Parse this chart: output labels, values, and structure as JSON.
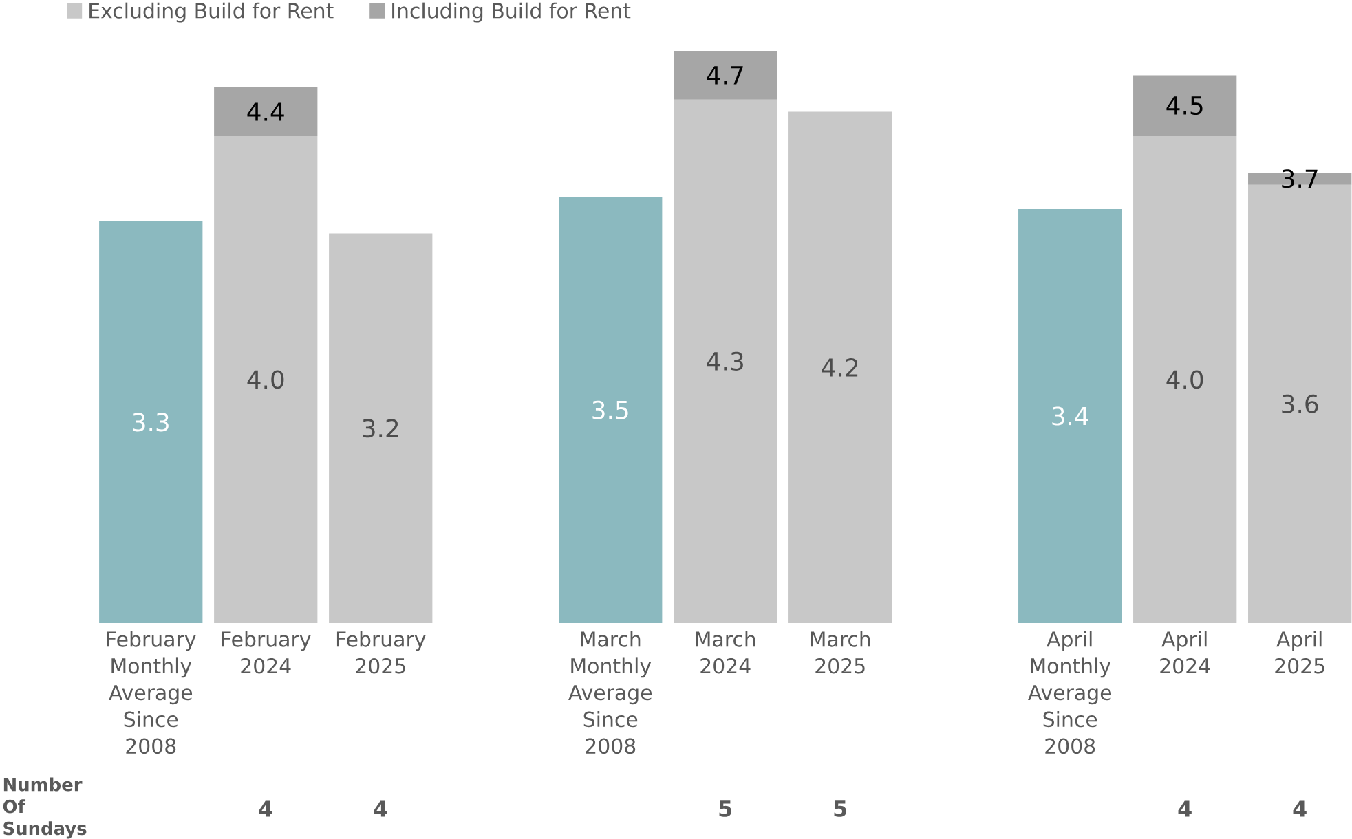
{
  "chart_data": {
    "type": "bar",
    "stacked": true,
    "legend": "top left",
    "categories": [
      "February Monthly Average Since 2008",
      "February 2024",
      "February 2025",
      null,
      "March Monthly Average Since 2008",
      "March 2024",
      "March 2025",
      null,
      "April Monthly Average Since 2008",
      "April 2024",
      "April 2025"
    ],
    "series": [
      {
        "color": "#8bb9bf",
        "values": [
          3.3,
          null,
          null,
          null,
          3.5,
          null,
          null,
          null,
          3.4,
          null,
          null
        ],
        "value_labels": [
          "3.3",
          null,
          null,
          null,
          "3.5",
          null,
          null,
          null,
          "3.4",
          null,
          null
        ]
      },
      {
        "name": "Excluding Build for Rent",
        "color": "#c8c8c8",
        "values": [
          null,
          4.0,
          3.2,
          null,
          null,
          4.3,
          4.2,
          null,
          null,
          4.0,
          3.6
        ],
        "value_labels": [
          null,
          "4.0",
          "3.2",
          null,
          null,
          "4.3",
          "4.2",
          null,
          null,
          "4.0",
          "3.6"
        ]
      },
      {
        "name": "Including Build for Rent",
        "color": "#a6a6a6",
        "values": [
          null,
          0.4,
          null,
          null,
          null,
          0.4,
          null,
          null,
          null,
          0.5,
          0.1
        ]
      }
    ],
    "totals": [
      null,
      "4.4",
      null,
      null,
      null,
      "4.7",
      null,
      null,
      null,
      "4.5",
      "3.7"
    ],
    "annotations": [
      "Number Of Sundays",
      "4",
      "4",
      "5",
      "5",
      "4",
      "4"
    ]
  }
}
